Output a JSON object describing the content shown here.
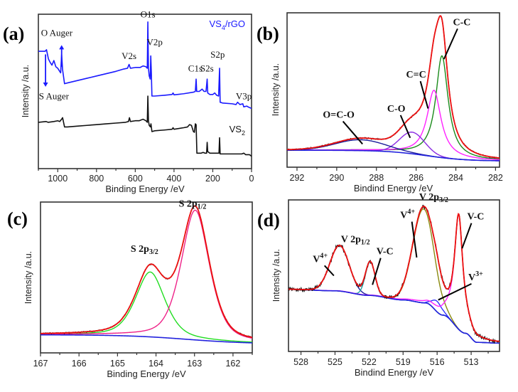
{
  "chart_data": [
    {
      "id": "a",
      "type": "line",
      "panel_label": "(a)",
      "title": "",
      "xlabel": "Binding Energy /eV",
      "ylabel": "Intensity /a.u.",
      "xlim": [
        1100,
        0
      ],
      "x_reversed": true,
      "xticks": [
        1000,
        800,
        600,
        400,
        200,
        0
      ],
      "grid": false,
      "series": [
        {
          "name": "VS4/rGO",
          "color": "#1a1aff",
          "legend_label": "VS₄/rGO",
          "points": [
            [
              1100,
              0.76
            ],
            [
              1065,
              0.76
            ],
            [
              1058,
              0.77
            ],
            [
              1048,
              0.71
            ],
            [
              1040,
              0.69
            ],
            [
              1030,
              0.67
            ],
            [
              1020,
              0.7
            ],
            [
              1010,
              0.66
            ],
            [
              1000,
              0.65
            ],
            [
              990,
              0.63
            ],
            [
              985,
              0.62
            ],
            [
              980,
              0.74
            ],
            [
              975,
              0.64
            ],
            [
              965,
              0.55
            ],
            [
              950,
              0.555
            ],
            [
              900,
              0.57
            ],
            [
              850,
              0.585
            ],
            [
              800,
              0.6
            ],
            [
              750,
              0.615
            ],
            [
              700,
              0.63
            ],
            [
              660,
              0.645
            ],
            [
              640,
              0.65
            ],
            [
              632,
              0.675
            ],
            [
              625,
              0.65
            ],
            [
              600,
              0.655
            ],
            [
              575,
              0.655
            ],
            [
              560,
              0.665
            ],
            [
              545,
              0.66
            ],
            [
              538,
              0.65
            ],
            [
              535,
              0.95
            ],
            [
              532,
              0.65
            ],
            [
              528,
              0.6
            ],
            [
              523,
              0.58
            ],
            [
              520,
              0.73
            ],
            [
              517,
              0.62
            ],
            [
              514,
              0.47
            ],
            [
              500,
              0.47
            ],
            [
              450,
              0.475
            ],
            [
              410,
              0.48
            ],
            [
              405,
              0.49
            ],
            [
              400,
              0.478
            ],
            [
              350,
              0.485
            ],
            [
              300,
              0.495
            ],
            [
              290,
              0.5
            ],
            [
              286,
              0.58
            ],
            [
              283,
              0.5
            ],
            [
              270,
              0.5
            ],
            [
              255,
              0.515
            ],
            [
              245,
              0.5
            ],
            [
              235,
              0.5
            ],
            [
              229,
              0.58
            ],
            [
              226,
              0.49
            ],
            [
              215,
              0.48
            ],
            [
              200,
              0.48
            ],
            [
              190,
              0.49
            ],
            [
              180,
              0.475
            ],
            [
              170,
              0.47
            ],
            [
              165,
              0.65
            ],
            [
              162,
              0.43
            ],
            [
              150,
              0.425
            ],
            [
              100,
              0.42
            ],
            [
              80,
              0.415
            ],
            [
              72,
              0.43
            ],
            [
              60,
              0.415
            ],
            [
              45,
              0.42
            ],
            [
              40,
              0.4
            ],
            [
              25,
              0.405
            ],
            [
              10,
              0.395
            ],
            [
              0,
              0.39
            ]
          ]
        },
        {
          "name": "VS2",
          "color": "#111111",
          "legend_label": "VS₂",
          "points": [
            [
              1100,
              0.3
            ],
            [
              1060,
              0.305
            ],
            [
              1050,
              0.3
            ],
            [
              1020,
              0.305
            ],
            [
              1000,
              0.31
            ],
            [
              990,
              0.305
            ],
            [
              980,
              0.32
            ],
            [
              975,
              0.33
            ],
            [
              965,
              0.27
            ],
            [
              950,
              0.27
            ],
            [
              900,
              0.275
            ],
            [
              850,
              0.28
            ],
            [
              800,
              0.285
            ],
            [
              750,
              0.29
            ],
            [
              700,
              0.295
            ],
            [
              650,
              0.3
            ],
            [
              635,
              0.305
            ],
            [
              630,
              0.33
            ],
            [
              625,
              0.305
            ],
            [
              600,
              0.31
            ],
            [
              580,
              0.31
            ],
            [
              560,
              0.32
            ],
            [
              545,
              0.31
            ],
            [
              538,
              0.3
            ],
            [
              535,
              0.47
            ],
            [
              532,
              0.31
            ],
            [
              528,
              0.28
            ],
            [
              522,
              0.27
            ],
            [
              519,
              0.29
            ],
            [
              514,
              0.24
            ],
            [
              500,
              0.245
            ],
            [
              450,
              0.25
            ],
            [
              410,
              0.255
            ],
            [
              405,
              0.265
            ],
            [
              400,
              0.255
            ],
            [
              350,
              0.265
            ],
            [
              330,
              0.27
            ],
            [
              320,
              0.285
            ],
            [
              310,
              0.28
            ],
            [
              300,
              0.24
            ],
            [
              295,
              0.235
            ],
            [
              290,
              0.29
            ],
            [
              286,
              0.285
            ],
            [
              282,
              0.1
            ],
            [
              270,
              0.1
            ],
            [
              260,
              0.1
            ],
            [
              250,
              0.105
            ],
            [
              240,
              0.1
            ],
            [
              232,
              0.1
            ],
            [
              229,
              0.17
            ],
            [
              226,
              0.11
            ],
            [
              215,
              0.1
            ],
            [
              200,
              0.1
            ],
            [
              175,
              0.1
            ],
            [
              168,
              0.1
            ],
            [
              165,
              0.2
            ],
            [
              162,
              0.095
            ],
            [
              150,
              0.095
            ],
            [
              100,
              0.095
            ],
            [
              50,
              0.095
            ],
            [
              40,
              0.1
            ],
            [
              30,
              0.09
            ],
            [
              10,
              0.09
            ],
            [
              0,
              0.08
            ]
          ]
        }
      ],
      "annotations": [
        {
          "text": "O1s",
          "x": 535,
          "y": 0.98
        },
        {
          "text": "V2p",
          "x": 500,
          "y": 0.8
        },
        {
          "text": "V2s",
          "x": 632,
          "y": 0.71
        },
        {
          "text": "O Auger",
          "x": 1005,
          "y": 0.86
        },
        {
          "text": "S Auger",
          "x": 1020,
          "y": 0.45
        },
        {
          "text": "C1s",
          "x": 290,
          "y": 0.63
        },
        {
          "text": "S2s",
          "x": 230,
          "y": 0.63
        },
        {
          "text": "S2p",
          "x": 175,
          "y": 0.72
        },
        {
          "text": "V3p",
          "x": 40,
          "y": 0.45
        }
      ],
      "arrows": [
        {
          "name": "o-auger-arrow",
          "x": 980,
          "from": 0.66,
          "to": 0.8,
          "direction": "up"
        },
        {
          "name": "s-auger-arrow",
          "x": 1063,
          "from": 0.74,
          "to": 0.53,
          "direction": "down"
        }
      ]
    },
    {
      "id": "b",
      "type": "line",
      "panel_label": "(b)",
      "title": "",
      "xlabel": "Bindind Energy /eV",
      "ylabel": "Intensity /a.u.",
      "xlim": [
        292.5,
        281.8
      ],
      "x_reversed": true,
      "xticks": [
        292,
        290,
        288,
        286,
        284,
        282
      ],
      "grid": false,
      "background": {
        "type": "shirley",
        "high_x": 292.5,
        "high_y": 0.11,
        "low_x": 281.8,
        "low_y": 0.04,
        "center": 285.5,
        "width": 2.0
      },
      "components": [
        {
          "name": "C-C",
          "color": "#1a8a1a",
          "center": 284.7,
          "fwhm": 0.75,
          "height": 0.66,
          "shape": "lorentzian"
        },
        {
          "name": "C=C",
          "color": "#ff22ff",
          "center": 285.1,
          "fwhm": 0.85,
          "height": 0.43,
          "shape": "lorentzian"
        },
        {
          "name": "C-O",
          "color": "#8a2be2",
          "center": 286.2,
          "fwhm": 1.5,
          "height": 0.14,
          "shape": "gaussian"
        },
        {
          "name": "O=C-O",
          "color": "#1c1c9a",
          "center": 288.8,
          "fwhm": 3.0,
          "height": 0.07,
          "shape": "gaussian"
        }
      ],
      "series": [
        {
          "name": "Experimental",
          "color": "#111111"
        },
        {
          "name": "Fitted envelope",
          "color": "#ee1111"
        },
        {
          "name": "Background",
          "color": "#2222dd"
        }
      ],
      "annotations": [
        {
          "text": "C-C",
          "x": 283.7,
          "y": 0.92,
          "line_to": [
            284.6,
            0.7
          ]
        },
        {
          "text": "C=C",
          "x": 286.0,
          "y": 0.58,
          "line_to": [
            285.4,
            0.38
          ]
        },
        {
          "text": "C-O",
          "x": 287.0,
          "y": 0.36,
          "line_to": [
            286.3,
            0.19
          ]
        },
        {
          "text": "O=C-O",
          "x": 289.9,
          "y": 0.32,
          "line_to": [
            288.7,
            0.15
          ]
        }
      ]
    },
    {
      "id": "c",
      "type": "line",
      "panel_label": "(c)",
      "title": "",
      "xlabel": "Binding Energy /eV",
      "ylabel": "Intensity /a.u.",
      "xlim": [
        167,
        161.5
      ],
      "x_reversed": true,
      "xticks": [
        167,
        166,
        165,
        164,
        163,
        162
      ],
      "grid": false,
      "background": {
        "type": "shirley",
        "high_x": 167,
        "high_y": 0.12,
        "low_x": 161.5,
        "low_y": 0.06,
        "center": 163.2,
        "width": 1.6
      },
      "components": [
        {
          "name": "S 2p3/2",
          "color": "#22dd22",
          "center": 164.15,
          "fwhm": 0.85,
          "height": 0.43,
          "shape": "voigt"
        },
        {
          "name": "S 2p1/2",
          "color": "#ee2288",
          "center": 162.98,
          "fwhm": 0.82,
          "height": 0.86,
          "shape": "voigt"
        }
      ],
      "series": [
        {
          "name": "Experimental",
          "color": "#111111"
        },
        {
          "name": "Fitted envelope",
          "color": "#ee1111"
        },
        {
          "name": "Background",
          "color": "#2222dd"
        }
      ],
      "annotations": [
        {
          "text": "S 2p",
          "sub": "3/2",
          "x": 164.3,
          "y": 0.67
        },
        {
          "text": "S 2p",
          "sub": "1/2",
          "x": 163.05,
          "y": 0.97
        }
      ]
    },
    {
      "id": "d",
      "type": "line",
      "panel_label": "(d)",
      "title": "",
      "xlabel": "Bindind Energy /eV",
      "ylabel": "Intensity /a.u.",
      "xlim": [
        529.1,
        510.5
      ],
      "x_reversed": true,
      "xticks": [
        528,
        525,
        522,
        519,
        516,
        513
      ],
      "grid": false,
      "background": {
        "type": "stepped",
        "points": [
          [
            529.1,
            0.41
          ],
          [
            525,
            0.4
          ],
          [
            522,
            0.37
          ],
          [
            519,
            0.34
          ],
          [
            517,
            0.32
          ],
          [
            515.5,
            0.24
          ],
          [
            513.5,
            0.12
          ],
          [
            512.5,
            0.06
          ],
          [
            510.5,
            0.055
          ]
        ]
      },
      "components": [
        {
          "name": "V4+ (V 2p1/2)",
          "color": "#1c1c9a",
          "center": 524.6,
          "fwhm": 2.0,
          "height": 0.3,
          "shape": "gaussian"
        },
        {
          "name": "V-C (V 2p1/2)",
          "color": "#20a0a0",
          "center": 521.9,
          "fwhm": 1.0,
          "height": 0.22,
          "shape": "gaussian"
        },
        {
          "name": "V4+ (V 2p3/2)",
          "color": "#8a8a10",
          "center": 517.2,
          "fwhm": 2.2,
          "height": 0.62,
          "shape": "gaussian"
        },
        {
          "name": "V3+",
          "color": "#3030ff",
          "center": 516.0,
          "fwhm": 1.0,
          "height": 0.07,
          "shape": "gaussian"
        },
        {
          "name": "V-C (V 2p3/2)",
          "color": "#ff22ff",
          "center": 514.1,
          "fwhm": 0.9,
          "height": 0.76,
          "shape": "lorentzian"
        }
      ],
      "series": [
        {
          "name": "Experimental",
          "color": "#111111"
        },
        {
          "name": "Fitted envelope",
          "color": "#ee1111"
        },
        {
          "name": "Background",
          "color": "#2222dd"
        }
      ],
      "annotations": [
        {
          "text": "V 2p",
          "sub": "3/2",
          "x": 516.3,
          "y": 1.0
        },
        {
          "text": "V",
          "sup": "4+",
          "x": 518.6,
          "y": 0.88,
          "line_to": [
            517.8,
            0.62
          ]
        },
        {
          "text": "V-C",
          "x": 512.6,
          "y": 0.87,
          "line_to": [
            513.8,
            0.68
          ]
        },
        {
          "text": "V 2p",
          "sub": "1/2",
          "x": 523.2,
          "y": 0.72
        },
        {
          "text": "V",
          "sup": "4+",
          "x": 526.3,
          "y": 0.59,
          "line_to": [
            525.1,
            0.5
          ]
        },
        {
          "text": "V-C",
          "x": 520.6,
          "y": 0.64,
          "line_to": [
            521.7,
            0.44
          ]
        },
        {
          "text": "V",
          "sup": "3+",
          "x": 512.6,
          "y": 0.47,
          "line_to": [
            515.9,
            0.34
          ]
        }
      ]
    }
  ]
}
